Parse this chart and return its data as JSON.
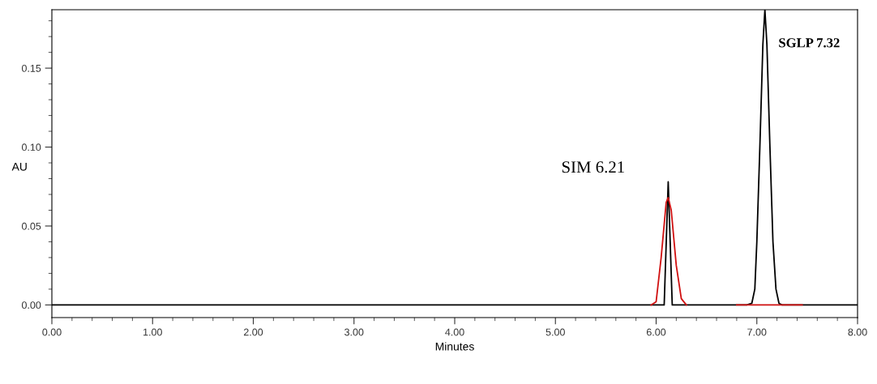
{
  "chart_data": {
    "type": "line",
    "xlabel": "Minutes",
    "ylabel": "AU",
    "series": [
      {
        "color": "#000000",
        "x": [
          0.0,
          5.95,
          6.08,
          6.12,
          6.16,
          6.9,
          6.95,
          6.98,
          7.0,
          7.03,
          7.06,
          7.08,
          7.1,
          7.13,
          7.16,
          7.19,
          7.22,
          7.25,
          8.0
        ],
        "values": [
          0,
          0,
          0,
          0.078,
          0,
          0,
          0.001,
          0.01,
          0.04,
          0.1,
          0.165,
          0.187,
          0.165,
          0.1,
          0.04,
          0.01,
          0.001,
          0,
          0
        ]
      },
      {
        "color": "#d01010",
        "x": [
          5.95,
          6.0,
          6.05,
          6.1,
          6.12,
          6.15,
          6.2,
          6.25,
          6.3,
          6.5,
          6.8,
          7.45
        ],
        "values": [
          0,
          0.002,
          0.03,
          0.065,
          0.068,
          0.06,
          0.025,
          0.004,
          0,
          null,
          0,
          0
        ]
      }
    ],
    "annotations": [
      {
        "text": "SIM 6.21",
        "x": 6.12,
        "y": 0.078
      },
      {
        "text": "SGLP 7.32",
        "x": 7.08,
        "y": 0.187
      }
    ],
    "xlim": [
      0,
      8
    ],
    "ylim": [
      -0.008,
      0.187
    ],
    "xticks": [
      {
        "value": 0,
        "label": "0.00"
      },
      {
        "value": 1,
        "label": "1.00"
      },
      {
        "value": 2,
        "label": "2.00"
      },
      {
        "value": 3,
        "label": "3.00"
      },
      {
        "value": 4,
        "label": "4.00"
      },
      {
        "value": 5,
        "label": "5.00"
      },
      {
        "value": 6,
        "label": "6.00"
      },
      {
        "value": 7,
        "label": "7.00"
      },
      {
        "value": 8,
        "label": "8.00"
      }
    ],
    "yticks": [
      {
        "value": 0,
        "label": "0.00"
      },
      {
        "value": 0.05,
        "label": "0.05"
      },
      {
        "value": 0.1,
        "label": "0.10"
      },
      {
        "value": 0.15,
        "label": "0.15"
      }
    ],
    "grid": false,
    "legend": false,
    "marker": "none",
    "line_style": "solid"
  }
}
